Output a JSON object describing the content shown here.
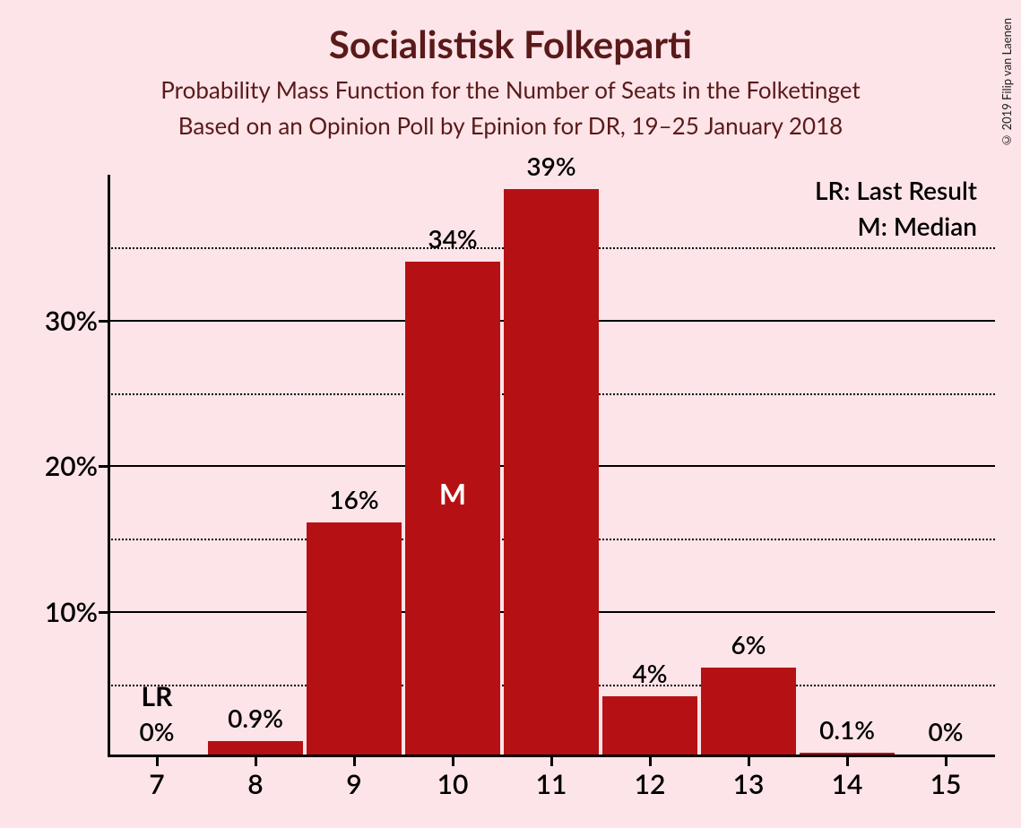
{
  "title": "Socialistisk Folkeparti",
  "subtitle1": "Probability Mass Function for the Number of Seats in the Folketinget",
  "subtitle2": "Based on an Opinion Poll by Epinion for DR, 19–25 January 2018",
  "credit": "© 2019 Filip van Laenen",
  "legend": {
    "lr": "LR: Last Result",
    "m": "M: Median"
  },
  "chart": {
    "type": "bar",
    "bar_color": "#b51115",
    "background_color": "#fce4e8",
    "axis_color": "#000000",
    "text_color": "#000000",
    "title_color": "#5a1a1a",
    "title_fontsize": 42,
    "subtitle_fontsize": 26,
    "label_fontsize": 28,
    "axis_fontsize": 30,
    "ylim": [
      0,
      40
    ],
    "y_major_ticks": [
      10,
      20,
      30
    ],
    "y_minor_ticks": [
      5,
      15,
      25,
      35
    ],
    "categories": [
      7,
      8,
      9,
      10,
      11,
      12,
      13,
      14,
      15
    ],
    "values": [
      0,
      0.9,
      16,
      34,
      39,
      4,
      6,
      0.1,
      0
    ],
    "value_labels": [
      "0%",
      "0.9%",
      "16%",
      "34%",
      "39%",
      "4%",
      "6%",
      "0.1%",
      "0%"
    ],
    "bar_width_ratio": 0.96,
    "annotations": [
      {
        "category": 7,
        "text": "LR",
        "position": "above-label",
        "color": "#000000"
      },
      {
        "category": 10,
        "text": "M",
        "position": "in-bar",
        "color": "#ffffff"
      }
    ]
  }
}
